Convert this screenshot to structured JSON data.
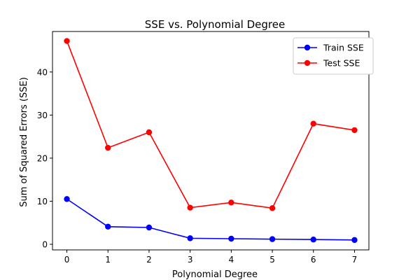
{
  "chart_data": {
    "type": "line",
    "title": "SSE vs. Polynomial Degree",
    "xlabel": "Polynomial Degree",
    "ylabel": "Sum of Squared Errors (SSE)",
    "x": [
      0,
      1,
      2,
      3,
      4,
      5,
      6,
      7
    ],
    "xlim": [
      -0.35,
      7.35
    ],
    "ylim": [
      -1.3,
      49.4
    ],
    "xticks": [
      0,
      1,
      2,
      3,
      4,
      5,
      6,
      7
    ],
    "yticks": [
      0,
      10,
      20,
      30,
      40
    ],
    "grid": false,
    "legend_position": "top-right",
    "series": [
      {
        "name": "Train SSE",
        "color": "#0000ff",
        "marker": "circle",
        "values": [
          10.5,
          4.1,
          3.9,
          1.4,
          1.3,
          1.2,
          1.1,
          1.0
        ]
      },
      {
        "name": "Test SSE",
        "color": "#ff0000",
        "marker": "circle",
        "values": [
          47.2,
          22.4,
          26.0,
          8.5,
          9.7,
          8.4,
          28.0,
          26.5
        ]
      }
    ]
  }
}
